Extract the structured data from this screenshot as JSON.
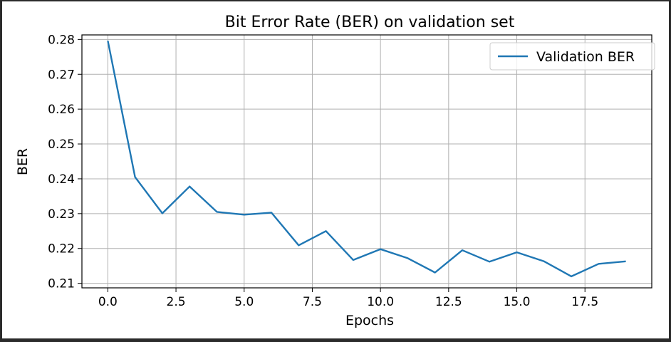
{
  "chart_data": {
    "type": "line",
    "title": "Bit Error Rate (BER) on validation set",
    "xlabel": "Epochs",
    "ylabel": "BER",
    "xlim": [
      -0.95,
      19.95
    ],
    "ylim": [
      0.2087,
      0.2813
    ],
    "xticks": [
      0,
      2.5,
      5,
      7.5,
      10,
      12.5,
      15,
      17.5
    ],
    "xtick_labels": [
      "0.0",
      "2.5",
      "5.0",
      "7.5",
      "10.0",
      "12.5",
      "15.0",
      "17.5"
    ],
    "yticks": [
      0.21,
      0.22,
      0.23,
      0.24,
      0.25,
      0.26,
      0.27,
      0.28
    ],
    "ytick_labels": [
      "0.21",
      "0.22",
      "0.23",
      "0.24",
      "0.25",
      "0.26",
      "0.27",
      "0.28"
    ],
    "grid": true,
    "legend_position": "top-right",
    "series": [
      {
        "name": "Validation BER",
        "color": "#1f77b4",
        "x": [
          0,
          1,
          2,
          3,
          4,
          5,
          6,
          7,
          8,
          9,
          10,
          11,
          12,
          13,
          14,
          15,
          16,
          17,
          18,
          19
        ],
        "y": [
          0.2796,
          0.2405,
          0.2301,
          0.2378,
          0.2305,
          0.2297,
          0.2303,
          0.2209,
          0.225,
          0.2167,
          0.2198,
          0.2172,
          0.2131,
          0.2195,
          0.2162,
          0.2189,
          0.2163,
          0.212,
          0.2156,
          0.2163
        ]
      }
    ]
  }
}
